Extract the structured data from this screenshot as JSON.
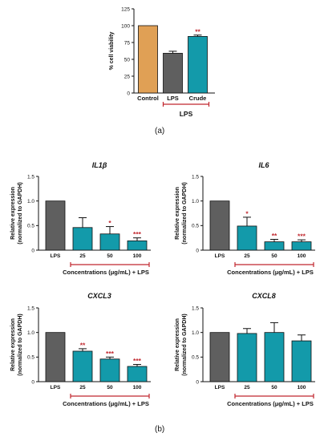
{
  "figure": {
    "caption_a": "(a)",
    "caption_b": "(b)"
  },
  "colors": {
    "control": "#e0a055",
    "lps": "#5f5f5f",
    "treat": "#139aaa",
    "bracket": "#c0262d",
    "stars": "#c0262d"
  },
  "chart_data": [
    {
      "type": "bar",
      "title": "",
      "ylabel": "% cell viability",
      "ylim": [
        0,
        125
      ],
      "yticks": [
        0,
        25,
        50,
        75,
        100,
        125
      ],
      "categories": [
        "Control",
        "LPS",
        "Crude"
      ],
      "values": [
        100,
        59,
        84
      ],
      "errors": [
        0,
        3,
        2
      ],
      "significance": [
        "",
        "",
        "**"
      ],
      "bar_colors": [
        "control",
        "lps",
        "treat"
      ],
      "group_label": "LPS",
      "group_span": [
        1,
        2
      ]
    },
    {
      "type": "bar",
      "title": "IL1β",
      "ylabel": "Relative expression",
      "ylabel2": "(normalized to GAPDH)",
      "xlabel": "Concentrations (μg/mL) + LPS",
      "ylim": [
        0,
        1.5
      ],
      "yticks": [
        "0",
        "0.5",
        "1.0",
        "1.5"
      ],
      "categories": [
        "LPS",
        "25",
        "50",
        "100"
      ],
      "values": [
        1.0,
        0.46,
        0.33,
        0.19
      ],
      "errors": [
        0,
        0.2,
        0.15,
        0.06
      ],
      "significance": [
        "",
        "",
        "*",
        "***"
      ],
      "bar_colors": [
        "lps",
        "treat",
        "treat",
        "treat"
      ]
    },
    {
      "type": "bar",
      "title": "IL6",
      "ylabel": "Relative expression",
      "ylabel2": "(normalized to GAPDH)",
      "xlabel": "Concentrations (μg/mL) + LPS",
      "ylim": [
        0,
        1.5
      ],
      "yticks": [
        "0",
        "0.5",
        "1.0",
        "1.5"
      ],
      "categories": [
        "LPS",
        "25",
        "50",
        "100"
      ],
      "values": [
        1.0,
        0.49,
        0.17,
        0.17
      ],
      "errors": [
        0,
        0.18,
        0.05,
        0.04
      ],
      "significance": [
        "",
        "*",
        "**",
        "***"
      ],
      "bar_colors": [
        "lps",
        "treat",
        "treat",
        "treat"
      ]
    },
    {
      "type": "bar",
      "title": "CXCL3",
      "ylabel": "Relative expression",
      "ylabel2": "(normalized to GAPDH)",
      "xlabel": "Concentrations (μg/mL) + LPS",
      "ylim": [
        0,
        1.5
      ],
      "yticks": [
        "0",
        "0.5",
        "1.0",
        "1.5"
      ],
      "categories": [
        "LPS",
        "25",
        "50",
        "100"
      ],
      "values": [
        1.0,
        0.62,
        0.46,
        0.31
      ],
      "errors": [
        0,
        0.05,
        0.04,
        0.04
      ],
      "significance": [
        "",
        "**",
        "***",
        "***"
      ],
      "bar_colors": [
        "lps",
        "treat",
        "treat",
        "treat"
      ]
    },
    {
      "type": "bar",
      "title": "CXCL8",
      "ylabel": "Relative expression",
      "ylabel2": "(normalized to GAPDH)",
      "xlabel": "Concentrations (μg/mL) + LPS",
      "ylim": [
        0,
        1.5
      ],
      "yticks": [
        "0",
        "0.5",
        "1.0",
        "1.5"
      ],
      "categories": [
        "LPS",
        "25",
        "50",
        "100"
      ],
      "values": [
        1.0,
        0.98,
        1.0,
        0.83
      ],
      "errors": [
        0,
        0.1,
        0.2,
        0.12
      ],
      "significance": [
        "",
        "",
        "",
        ""
      ],
      "bar_colors": [
        "lps",
        "treat",
        "treat",
        "treat"
      ]
    }
  ]
}
